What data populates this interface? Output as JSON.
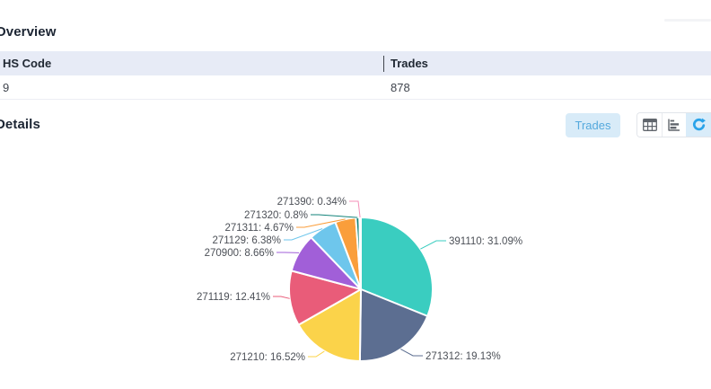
{
  "overview": {
    "title": "Overview",
    "table": {
      "columns": [
        "HS Code",
        "Trades"
      ],
      "rows": [
        [
          "9",
          "878"
        ]
      ]
    }
  },
  "details": {
    "title": "Details",
    "trades_button": "Trades",
    "view_icons": [
      "table-view",
      "bar-chart-view",
      "refresh"
    ]
  },
  "colors": {
    "table_header_bg": "#e7ebf6",
    "button_bg": "#d8ebf8",
    "button_text": "#55a9dd",
    "refresh_accent": "#2aa3e9",
    "icon_gray": "#61666d",
    "label_text": "#4c5057"
  },
  "chart_data": {
    "type": "pie",
    "title": "",
    "legend": "none",
    "label_format": "code: percent%",
    "direction": "clockwise",
    "start_angle": "top",
    "items": [
      {
        "label": "391110",
        "value": 31.09,
        "display": "391110:  31.09%",
        "color": "#3acdc0"
      },
      {
        "label": "271312",
        "value": 19.13,
        "display": "271312:  19.13%",
        "color": "#5c6e91"
      },
      {
        "label": "271210",
        "value": 16.52,
        "display": "271210:  16.52%",
        "color": "#fbd34a"
      },
      {
        "label": "271119",
        "value": 12.41,
        "display": "271119:  12.41%",
        "color": "#e95c79"
      },
      {
        "label": "270900",
        "value": 8.66,
        "display": "270900:  8.66%",
        "color": "#a15fd8"
      },
      {
        "label": "271129",
        "value": 6.38,
        "display": "271129:  6.38%",
        "color": "#6ec6ec"
      },
      {
        "label": "271311",
        "value": 4.67,
        "display": "271311:  4.67%",
        "color": "#fa9e3b"
      },
      {
        "label": "271320",
        "value": 0.8,
        "display": "271320:  0.8%",
        "color": "#12837a"
      },
      {
        "label": "271390",
        "value": 0.34,
        "display": "271390:  0.34%",
        "color": "#f48fb8"
      }
    ]
  }
}
